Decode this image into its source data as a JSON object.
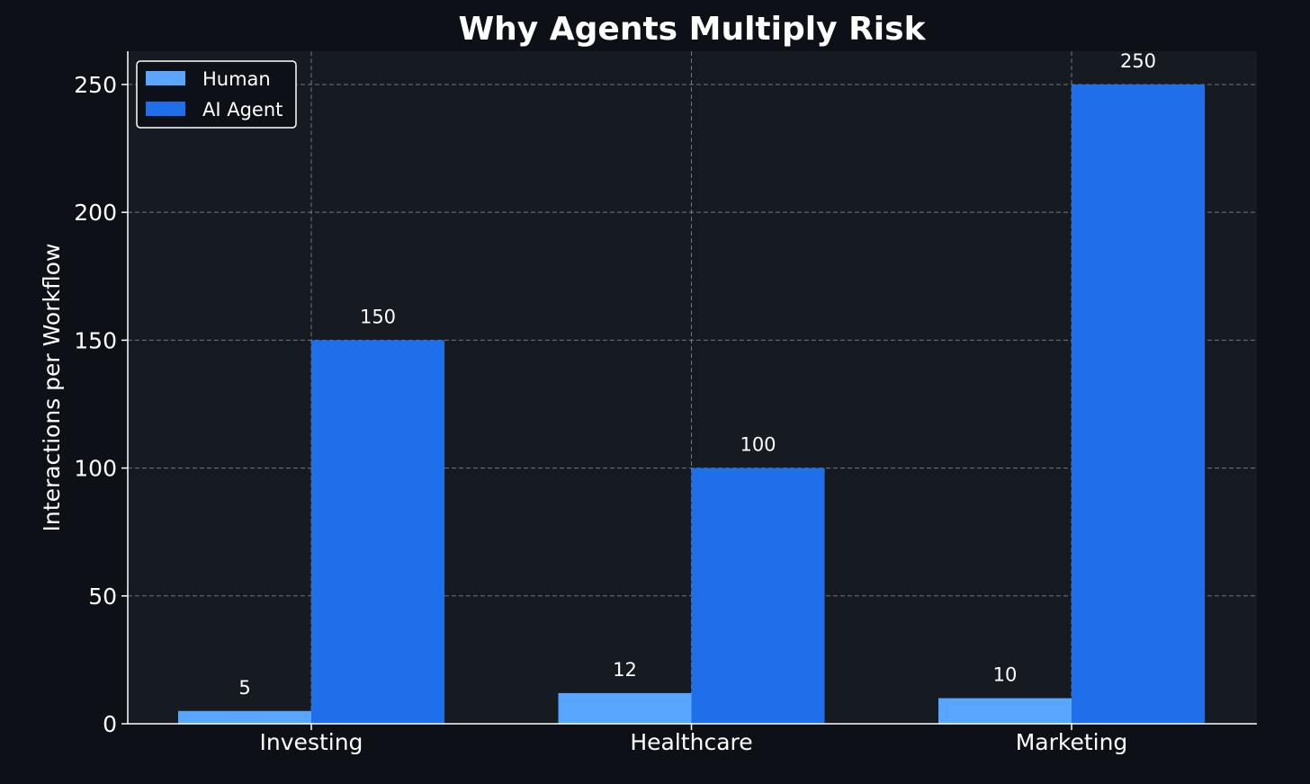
{
  "chart_data": {
    "type": "bar",
    "title": "Why Agents Multiply Risk",
    "xlabel": "",
    "ylabel": "Interactions per Workflow",
    "categories": [
      "Investing",
      "Healthcare",
      "Marketing"
    ],
    "series": [
      {
        "name": "Human",
        "values": [
          5,
          12,
          10
        ],
        "color": "#58a6ff"
      },
      {
        "name": "AI Agent",
        "values": [
          150,
          100,
          250
        ],
        "color": "#1f6feb"
      }
    ],
    "ylim": [
      0,
      263
    ],
    "yticks": [
      0,
      50,
      100,
      150,
      200,
      250
    ],
    "grid": true,
    "legend_position": "top-left",
    "show_data_labels": true,
    "colors": {
      "background": "#0d1117",
      "plot_background": "#161b22",
      "text": "#ffffff",
      "grid": "#8b949e"
    }
  }
}
